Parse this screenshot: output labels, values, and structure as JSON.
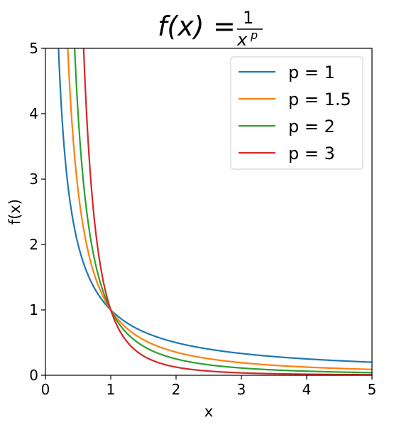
{
  "chart_data": {
    "type": "line",
    "title": {
      "lhs": "f(x)",
      "equals": "=",
      "numerator": "1",
      "denominator_base": "x",
      "denominator_exponent": "p"
    },
    "xlabel": "x",
    "ylabel": "f(x)",
    "xlim": [
      0,
      5
    ],
    "ylim": [
      0,
      5
    ],
    "xticks": [
      0,
      1,
      2,
      3,
      4,
      5
    ],
    "yticks": [
      0,
      1,
      2,
      3,
      4,
      5
    ],
    "xtick_labels": [
      "0",
      "1",
      "2",
      "3",
      "4",
      "5"
    ],
    "ytick_labels": [
      "0",
      "1",
      "2",
      "3",
      "4",
      "5"
    ],
    "grid": false,
    "legend_position": "upper right",
    "function": "1/x^p",
    "x_domain": [
      0.01,
      5
    ],
    "series": [
      {
        "name": "p = 1",
        "p": 1,
        "color": "#1f77b4"
      },
      {
        "name": "p = 1.5",
        "p": 1.5,
        "color": "#ff7f0e"
      },
      {
        "name": "p = 2",
        "p": 2,
        "color": "#2ca02c"
      },
      {
        "name": "p = 3",
        "p": 3,
        "color": "#d62728"
      }
    ]
  }
}
